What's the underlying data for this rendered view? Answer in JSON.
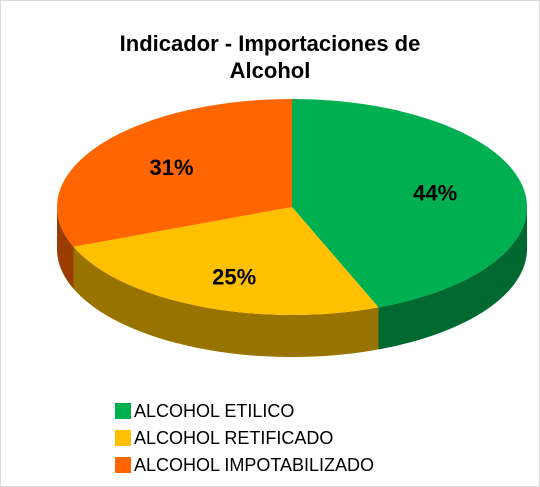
{
  "chart_data": {
    "type": "pie",
    "title": "Indicador - Importaciones de Alcohol",
    "title_lines": [
      "Indicador - Importaciones de",
      "Alcohol"
    ],
    "categories": [
      "ALCOHOL ETILICO",
      "ALCOHOL RETIFICADO",
      "ALCOHOL IMPOTABILIZADO"
    ],
    "values": [
      44,
      25,
      31
    ],
    "value_labels": [
      "44%",
      "25%",
      "31%"
    ],
    "colors": [
      "#00b050",
      "#ffc000",
      "#ff6600"
    ],
    "legend": "bottom"
  }
}
